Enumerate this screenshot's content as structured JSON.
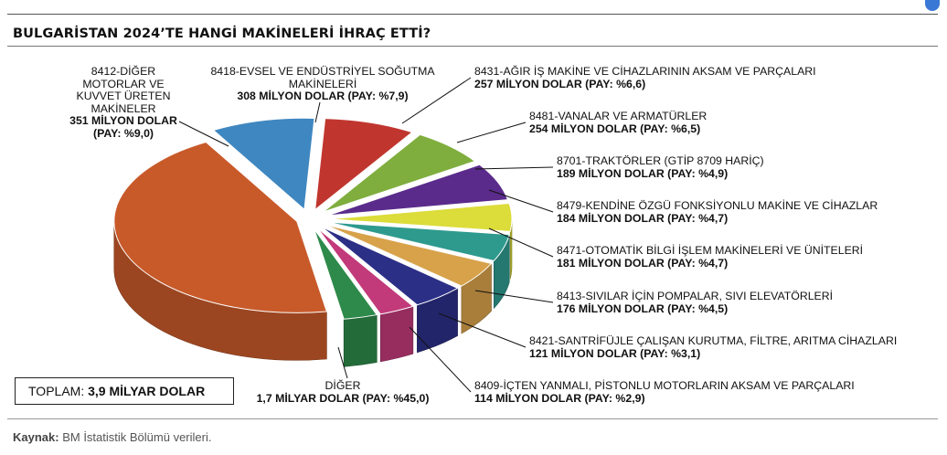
{
  "title": "BULGARİSTAN 2024’TE HANGİ MAKİNELERİ İHRAÇ ETTİ?",
  "total": {
    "label": "TOPLAM:",
    "value": "3,9 MİLYAR DOLAR"
  },
  "source": {
    "label": "Kaynak:",
    "text": "BM İstatistik Bölümü verileri."
  },
  "chart_data": {
    "type": "pie",
    "title": "BULGARİSTAN 2024’TE HANGİ MAKİNELERİ İHRAÇ ETTİ?",
    "unit": "Milyon Dolar",
    "slices": [
      {
        "name": "8412-DİĞER MOTORLAR VE KUVVET ÜRETEN MAKİNELER",
        "value": 351,
        "share": 9.0,
        "color": "#3f87c0",
        "value_label": "351 MİLYON DOLAR",
        "share_label": "(PAY: %9,0)"
      },
      {
        "name": "8418-EVSEL VE ENDÜSTRİYEL SOĞUTMA MAKİNELERİ",
        "value": 308,
        "share": 7.9,
        "color": "#c0362f",
        "value_label": "308 MİLYON DOLAR (PAY: %7,9)"
      },
      {
        "name": "8431-AĞIR İŞ MAKİNE VE CİHAZLARININ AKSAM VE PARÇALARI",
        "value": 257,
        "share": 6.6,
        "color": "#7fae3e",
        "value_label": "257 MİLYON DOLAR (PAY: %6,6)"
      },
      {
        "name": "8481-VANALAR VE ARMATÜRLER",
        "value": 254,
        "share": 6.5,
        "color": "#5b2b8c",
        "value_label": "254 MİLYON DOLAR (PAY: %6,5)"
      },
      {
        "name": "8701-TRAKTÖRLER (GTİP 8709 HARİÇ)",
        "value": 189,
        "share": 4.9,
        "color": "#dcdc3a",
        "value_label": "189 MİLYON DOLAR (PAY: %4,9)"
      },
      {
        "name": "8479-KENDİNE ÖZGÜ FONKSİYONLU MAKİNE VE CİHAZLAR",
        "value": 184,
        "share": 4.7,
        "color": "#2e9a8e",
        "value_label": "184 MİLYON DOLAR (PAY: %4,7)"
      },
      {
        "name": "8471-OTOMATİK BİLGİ İŞLEM MAKİNELERİ VE ÜNİTELERİ",
        "value": 181,
        "share": 4.7,
        "color": "#d7a24a",
        "value_label": "181 MİLYON DOLAR (PAY: %4,7)"
      },
      {
        "name": "8413-SIVILAR İÇİN POMPALAR, SIVI ELEVATÖRLERİ",
        "value": 176,
        "share": 4.5,
        "color": "#2c2f86",
        "value_label": "176 MİLYON DOLAR (PAY: %4,5)"
      },
      {
        "name": "8421-SANTRİFÜJLE ÇALIŞAN KURUTMA, FİLTRE, ARITMA CİHAZLARI",
        "value": 121,
        "share": 3.1,
        "color": "#c23a7a",
        "value_label": "121 MİLYON DOLAR (PAY: %3,1)"
      },
      {
        "name": "8409-İÇTEN YANMALI, PİSTONLU MOTORLARIN AKSAM VE PARÇALARI",
        "value": 114,
        "share": 2.9,
        "color": "#2d8a4a",
        "value_label": "114 MİLYON DOLAR (PAY: %2,9)"
      },
      {
        "name": "DİĞER",
        "value": 1700,
        "share": 45.0,
        "color": "#c85a2a",
        "value_label": "1,7 MİLYAR DOLAR (PAY: %45,0)"
      }
    ]
  }
}
